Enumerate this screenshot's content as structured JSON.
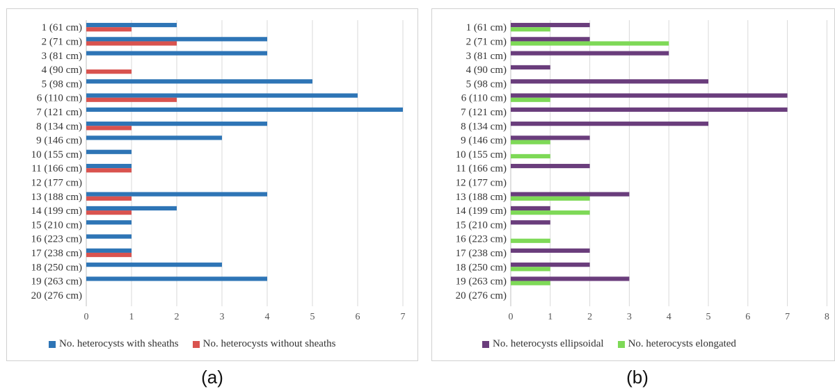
{
  "chart_data": [
    {
      "type": "bar",
      "orientation": "horizontal",
      "caption": "(a)",
      "categories": [
        "1 (61 cm)",
        "2 (71 cm)",
        "3 (81 cm)",
        "4 (90 cm)",
        "5 (98 cm)",
        "6 (110 cm)",
        "7 (121 cm)",
        "8 (134 cm)",
        "9 (146 cm)",
        "10 (155 cm)",
        "11 (166 cm)",
        "12 (177 cm)",
        "13 (188 cm)",
        "14 (199 cm)",
        "15 (210 cm)",
        "16 (223 cm)",
        "17 (238 cm)",
        "18 (250 cm)",
        "19 (263 cm)",
        "20 (276 cm)"
      ],
      "series": [
        {
          "name": "No. heterocysts with sheaths",
          "color": "#2e75b6",
          "values": [
            2,
            4,
            4,
            0,
            5,
            6,
            7,
            4,
            3,
            1,
            1,
            0,
            4,
            2,
            1,
            1,
            1,
            3,
            4,
            0
          ]
        },
        {
          "name": "No. heterocysts without sheaths",
          "color": "#d9534f",
          "values": [
            1,
            2,
            0,
            1,
            0,
            2,
            0,
            1,
            0,
            0,
            1,
            0,
            1,
            1,
            0,
            0,
            1,
            0,
            0,
            0
          ]
        }
      ],
      "xlim": [
        0,
        7
      ],
      "xticks": [
        "0",
        "1",
        "2",
        "3",
        "4",
        "5",
        "6",
        "7"
      ],
      "grid": true,
      "legend": "bottom"
    },
    {
      "type": "bar",
      "orientation": "horizontal",
      "caption": "(b)",
      "categories": [
        "1 (61 cm)",
        "2 (71 cm)",
        "3 (81 cm)",
        "4 (90 cm)",
        "5 (98 cm)",
        "6 (110 cm)",
        "7 (121 cm)",
        "8 (134 cm)",
        "9 (146 cm)",
        "10 (155 cm)",
        "11 (166 cm)",
        "12 (177 cm)",
        "13 (188 cm)",
        "14 (199 cm)",
        "15 (210 cm)",
        "16 (223 cm)",
        "17 (238 cm)",
        "18 (250 cm)",
        "19 (263 cm)",
        "20 (276 cm)"
      ],
      "series": [
        {
          "name": "No. heterocysts ellipsoidal",
          "color": "#6a3d7c",
          "values": [
            2,
            2,
            4,
            1,
            5,
            7,
            7,
            5,
            2,
            0,
            2,
            0,
            3,
            1,
            1,
            0,
            2,
            2,
            3,
            0
          ]
        },
        {
          "name": "No. heterocysts elongated",
          "color": "#7ed957",
          "values": [
            1,
            4,
            0,
            0,
            0,
            1,
            0,
            0,
            1,
            1,
            0,
            0,
            2,
            2,
            0,
            1,
            0,
            1,
            1,
            0
          ]
        }
      ],
      "xlim": [
        0,
        8
      ],
      "xticks": [
        "0",
        "1",
        "2",
        "3",
        "4",
        "5",
        "6",
        "7",
        "8"
      ],
      "grid": true,
      "legend": "bottom"
    }
  ]
}
